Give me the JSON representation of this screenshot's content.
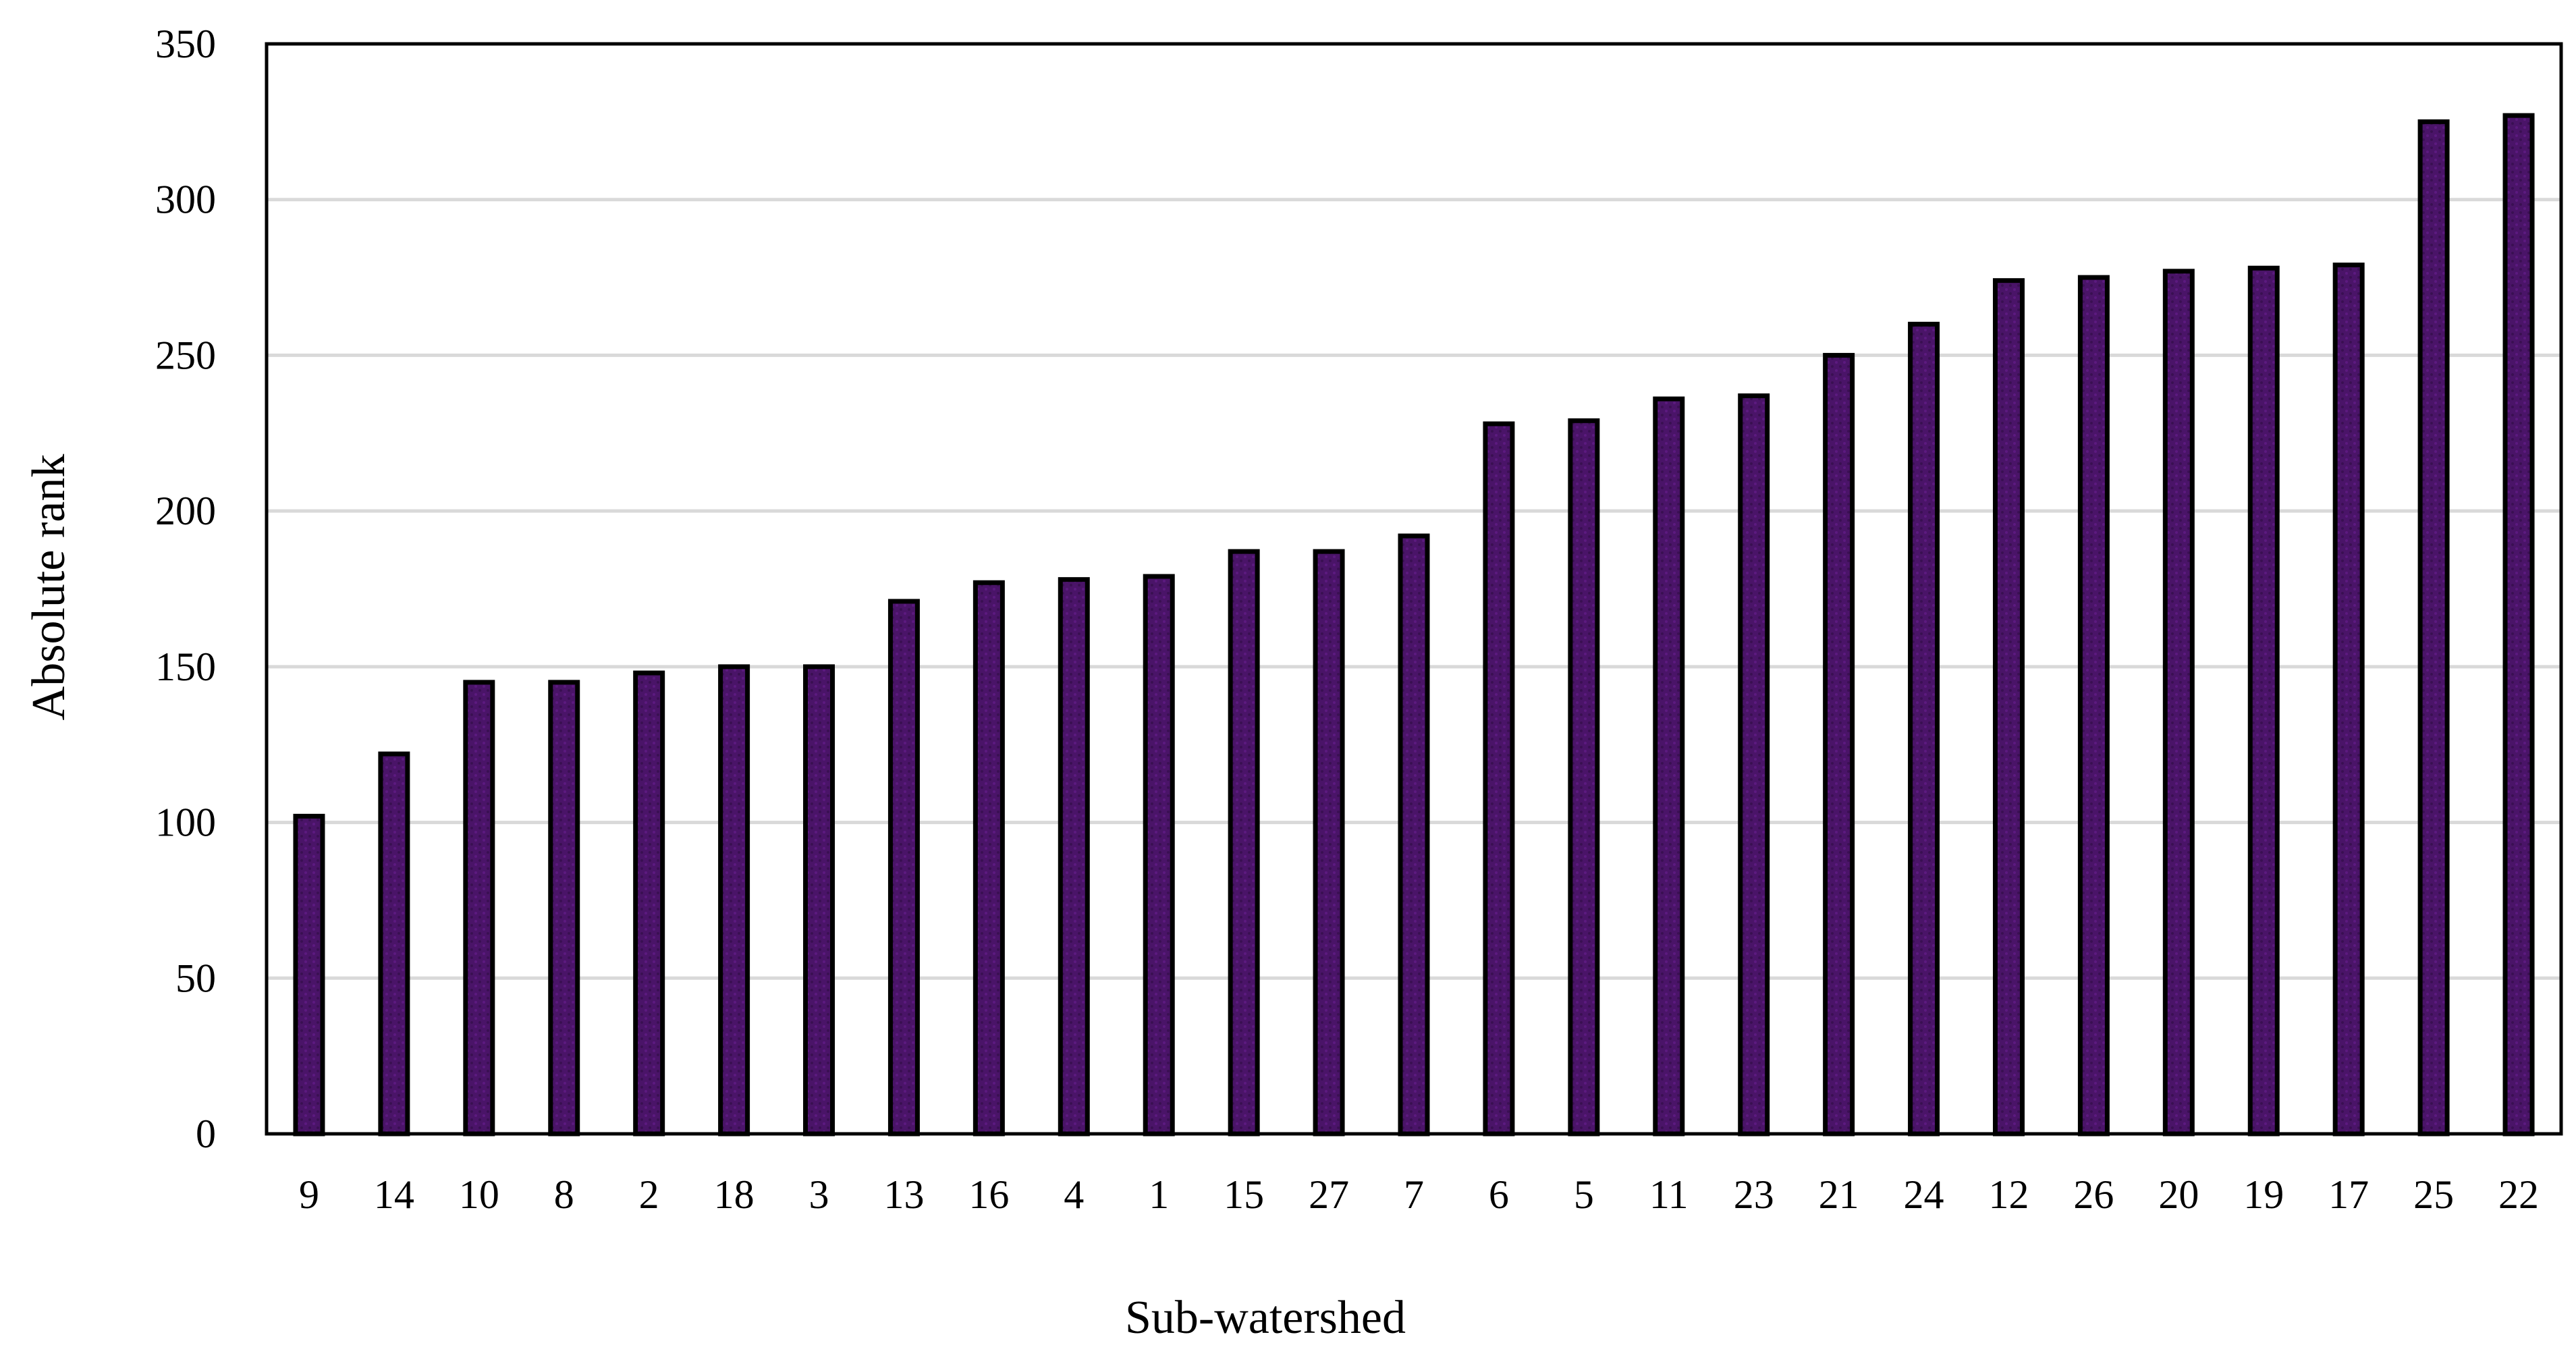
{
  "chart_data": {
    "type": "bar",
    "title": "",
    "xlabel": "Sub-watershed",
    "ylabel": "Absolute rank",
    "categories": [
      "9",
      "14",
      "10",
      "8",
      "2",
      "18",
      "3",
      "13",
      "16",
      "4",
      "1",
      "15",
      "27",
      "7",
      "6",
      "5",
      "11",
      "23",
      "21",
      "24",
      "12",
      "26",
      "20",
      "19",
      "17",
      "25",
      "22"
    ],
    "values": [
      102,
      122,
      145,
      145,
      148,
      150,
      150,
      171,
      177,
      178,
      179,
      187,
      187,
      192,
      228,
      229,
      236,
      237,
      250,
      260,
      274,
      275,
      277,
      278,
      279,
      325,
      327
    ],
    "ylim": [
      0,
      350
    ],
    "yticks": [
      "0",
      "50",
      "100",
      "150",
      "200",
      "250",
      "300",
      "350"
    ],
    "grid": true,
    "legend": "none",
    "colors": {
      "bar": "#4a1468",
      "bar_border": "#000000",
      "grid": "#d9d9d9"
    }
  }
}
